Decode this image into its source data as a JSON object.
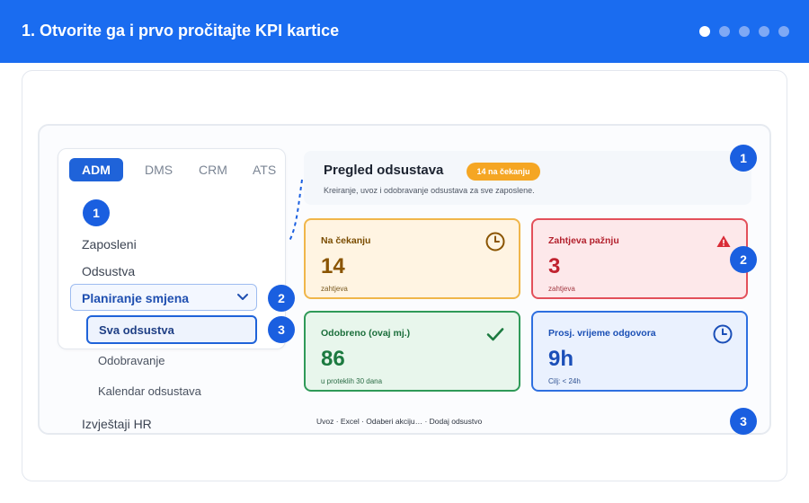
{
  "banner": {
    "title": "1. Otvorite ga i prvo pročitajte KPI kartice",
    "step_count": 5,
    "active_step": 1
  },
  "tabs": [
    "ADM",
    "DMS",
    "CRM",
    "ATS"
  ],
  "active_tab": "ADM",
  "nav": {
    "item_employees": "Zaposleni",
    "item_absences": "Odsustva",
    "expanded_label": "Planiranje smjena",
    "selected_sub": "Sva odsustva",
    "sub_approvals": "Odobravanje",
    "sub_calendar": "Kalendar odsustava",
    "item_reports": "Izvještaji HR"
  },
  "header": {
    "title": "Pregled odsustava",
    "pending_pill": "14 na čekanju",
    "subtitle": "Kreiranje, uvoz i odobravanje odsustava za sve zaposlene."
  },
  "kpis": [
    {
      "title": "Na čekanju",
      "value": "14",
      "sub": "zahtjeva",
      "icon": "clock-icon"
    },
    {
      "title": "Zahtjeva pažnju",
      "value": "3",
      "sub": "zahtjeva",
      "icon": "warning-icon"
    },
    {
      "title": "Odobreno (ovaj mj.)",
      "value": "86",
      "sub": "u proteklih 30 dana",
      "icon": "check-icon"
    },
    {
      "title": "Prosj. vrijeme odgovora",
      "value": "9h",
      "sub": "Cilj: < 24h",
      "icon": "clock-icon"
    }
  ],
  "footer_actions": "Uvoz · Excel · Odaberi akciju… · Dodaj odsustvo",
  "callouts": {
    "a": "1",
    "b": "2",
    "c": "3",
    "d": "1",
    "e": "2",
    "f": "3"
  },
  "colors": {
    "banner": "#1a6cf0",
    "badge": "#1a5fe0",
    "pending": "#f5a623",
    "attention": "#e3505a",
    "approved": "#2f9a58",
    "response": "#2e6fe0"
  }
}
